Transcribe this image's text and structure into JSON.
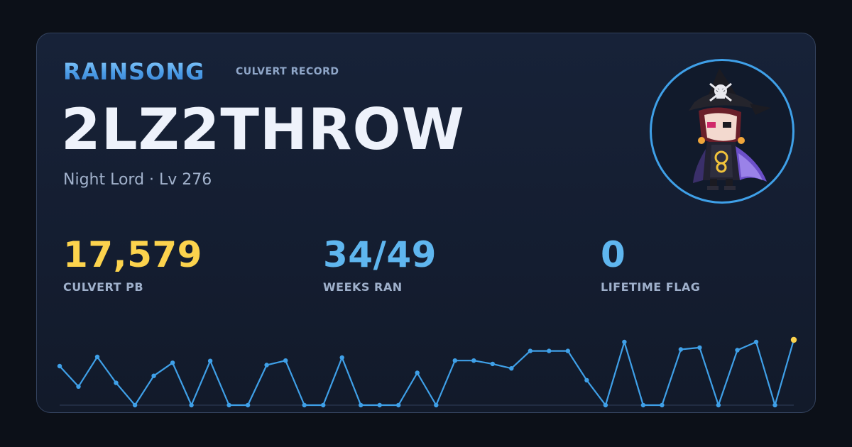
{
  "header": {
    "brand": "RAINSONG",
    "record_label": "CULVERT RECORD"
  },
  "character": {
    "name": "2LZ2THROW",
    "subtitle": "Night Lord · Lv 276",
    "avatar_icon": "character-avatar-icon"
  },
  "stats": [
    {
      "value": "17,579",
      "label": "CULVERT PB",
      "color": "#fcd34d"
    },
    {
      "value": "34/49",
      "label": "WEEKS RAN",
      "color": "#5fb6ef"
    },
    {
      "value": "0",
      "label": "LIFETIME FLAG",
      "color": "#5fb6ef"
    }
  ],
  "colors": {
    "accent": "#3fa0e8",
    "line": "#3fa0e8",
    "highlight_point": "#fcd34d"
  },
  "chart_data": {
    "type": "line",
    "title": "",
    "xlabel": "",
    "ylabel": "",
    "ylim": [
      0,
      17579
    ],
    "x": [
      1,
      2,
      3,
      4,
      5,
      6,
      7,
      8,
      9,
      10,
      11,
      12,
      13,
      14,
      15,
      16,
      17,
      18,
      19,
      20,
      21,
      22,
      23,
      24,
      25,
      26,
      27,
      28,
      29,
      30,
      31,
      32,
      33,
      34,
      35,
      36,
      37,
      38,
      39,
      40
    ],
    "series": [
      {
        "values": [
          10500,
          5000,
          13000,
          6000,
          0,
          7900,
          11400,
          0,
          11900,
          0,
          0,
          10800,
          12000,
          0,
          0,
          12800,
          0,
          0,
          0,
          8700,
          0,
          12000,
          12000,
          11100,
          9900,
          14600,
          14600,
          14600,
          6700,
          0,
          17000,
          0,
          0,
          15000,
          15500,
          0,
          14800,
          17000,
          0,
          17579
        ]
      }
    ]
  }
}
